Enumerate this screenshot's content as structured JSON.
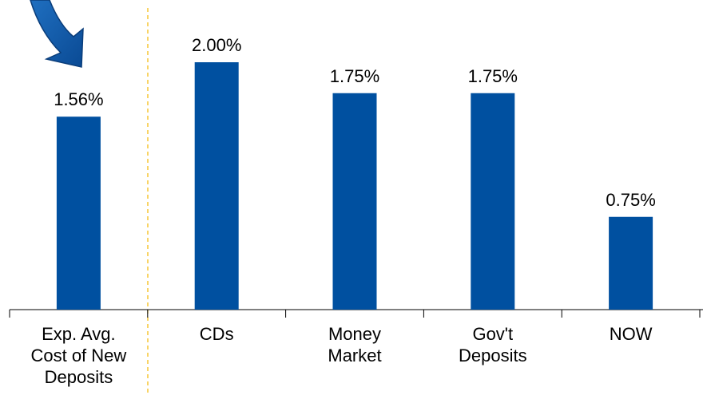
{
  "chart_data": {
    "type": "bar",
    "categories": [
      "Exp. Avg. Cost of New Deposits",
      "CDs",
      "Money Market",
      "Gov't Deposits",
      "NOW"
    ],
    "values": [
      1.56,
      2.0,
      1.75,
      1.75,
      0.75
    ],
    "value_labels": [
      "1.56%",
      "2.00%",
      "1.75%",
      "1.75%",
      "0.75%"
    ],
    "color": "#0050a0"
  }
}
